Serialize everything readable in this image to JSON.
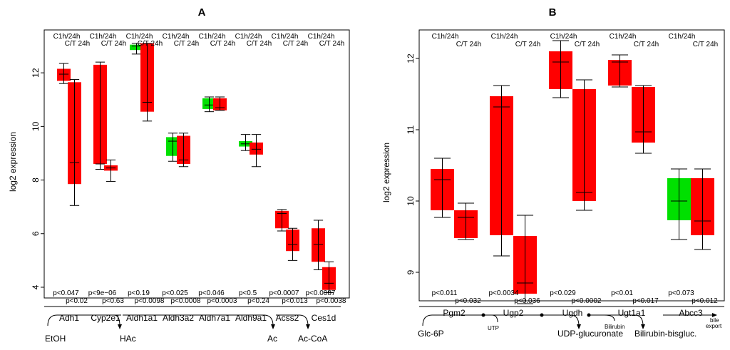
{
  "chart_data": [
    {
      "type": "box",
      "title": "A",
      "ylabel": "log2 expression",
      "ylim": [
        3.6,
        13.6
      ],
      "yticks": [
        4,
        6,
        8,
        10,
        12
      ],
      "colors": {
        "green": "#00e000",
        "red": "#ff0000"
      },
      "comparison_labels": {
        "first": "C1h/24h",
        "second": "C/T 24h"
      },
      "genes": [
        {
          "name": "Adh1",
          "box1": {
            "color": "red",
            "q1": 11.7,
            "q3": 12.15,
            "median": 11.95,
            "whisker_lo": 11.6,
            "whisker_hi": 12.35
          },
          "box2": {
            "color": "red",
            "q1": 7.85,
            "q3": 11.65,
            "median": 8.65,
            "whisker_lo": 7.05,
            "whisker_hi": 11.75
          },
          "p1": "p<0.047",
          "p2": "p<0.02"
        },
        {
          "name": "Cyp2e1",
          "box1": {
            "color": "red",
            "q1": 8.6,
            "q3": 12.3,
            "median": 8.6,
            "whisker_lo": 8.4,
            "whisker_hi": 12.4
          },
          "box2": {
            "color": "red",
            "q1": 8.35,
            "q3": 8.55,
            "median": 8.45,
            "whisker_lo": 7.95,
            "whisker_hi": 8.75
          },
          "p1": "p<9e−06",
          "p2": "p<0.63"
        },
        {
          "name": "Aldh1a1",
          "box1": {
            "color": "green",
            "q1": 12.85,
            "q3": 13.05,
            "median": 13.0,
            "whisker_lo": 12.7,
            "whisker_hi": 13.1
          },
          "box2": {
            "color": "red",
            "q1": 10.55,
            "q3": 13.1,
            "median": 10.9,
            "whisker_lo": 10.2,
            "whisker_hi": 13.1
          },
          "p1": "p<0.19",
          "p2": "p<0.0098"
        },
        {
          "name": "Aldh3a2",
          "box1": {
            "color": "green",
            "q1": 8.9,
            "q3": 9.6,
            "median": 9.45,
            "whisker_lo": 8.7,
            "whisker_hi": 9.75
          },
          "box2": {
            "color": "red",
            "q1": 8.6,
            "q3": 9.65,
            "median": 8.75,
            "whisker_lo": 8.5,
            "whisker_hi": 9.75
          },
          "p1": "p<0.025",
          "p2": "p<0.0008"
        },
        {
          "name": "Aldh7a1",
          "box1": {
            "color": "green",
            "q1": 10.65,
            "q3": 11.05,
            "median": 10.8,
            "whisker_lo": 10.55,
            "whisker_hi": 11.1
          },
          "box2": {
            "color": "red",
            "q1": 10.6,
            "q3": 11.05,
            "median": 10.7,
            "whisker_lo": 10.6,
            "whisker_hi": 11.1
          },
          "p1": "p<0.046",
          "p2": "p<0.0003"
        },
        {
          "name": "Aldh9a1",
          "box1": {
            "color": "green",
            "q1": 9.25,
            "q3": 9.45,
            "median": 9.35,
            "whisker_lo": 9.1,
            "whisker_hi": 9.7
          },
          "box2": {
            "color": "red",
            "q1": 8.95,
            "q3": 9.4,
            "median": 9.15,
            "whisker_lo": 8.5,
            "whisker_hi": 9.7
          },
          "p1": "p<0.5",
          "p2": "p<0.24"
        },
        {
          "name": "Acss2",
          "box1": {
            "color": "red",
            "q1": 6.2,
            "q3": 6.85,
            "median": 6.75,
            "whisker_lo": 6.1,
            "whisker_hi": 6.9
          },
          "box2": {
            "color": "red",
            "q1": 5.35,
            "q3": 6.15,
            "median": 5.6,
            "whisker_lo": 5.0,
            "whisker_hi": 6.2
          },
          "p1": "p<0.0007",
          "p2": "p<0.013"
        },
        {
          "name": "Ces1d",
          "box1": {
            "color": "red",
            "q1": 4.95,
            "q3": 6.2,
            "median": 5.6,
            "whisker_lo": 4.65,
            "whisker_hi": 6.5
          },
          "box2": {
            "color": "red",
            "q1": 3.9,
            "q3": 4.75,
            "median": 4.15,
            "whisker_lo": 3.8,
            "whisker_hi": 4.95
          },
          "p1": "p<0.0087",
          "p2": "p<0.0038"
        }
      ],
      "pathway": {
        "metabolites": [
          "EtOH",
          "HAc",
          "Ac",
          "Ac-CoA"
        ]
      }
    },
    {
      "type": "box",
      "title": "B",
      "ylabel": "log2 expression",
      "ylim": [
        8.6,
        12.4
      ],
      "yticks": [
        9,
        10,
        11,
        12
      ],
      "colors": {
        "green": "#00e000",
        "red": "#ff0000"
      },
      "comparison_labels": {
        "first": "C1h/24h",
        "second": "C/T 24h"
      },
      "genes": [
        {
          "name": "Pgm2",
          "box1": {
            "color": "red",
            "q1": 9.87,
            "q3": 10.45,
            "median": 10.3,
            "whisker_lo": 9.77,
            "whisker_hi": 10.6
          },
          "box2": {
            "color": "red",
            "q1": 9.48,
            "q3": 9.87,
            "median": 9.77,
            "whisker_lo": 9.46,
            "whisker_hi": 9.97
          },
          "p1": "p<0.011",
          "p2": "p<0.032"
        },
        {
          "name": "Ugp2",
          "box1": {
            "color": "red",
            "q1": 9.52,
            "q3": 11.47,
            "median": 11.32,
            "whisker_lo": 9.23,
            "whisker_hi": 11.62
          },
          "box2": {
            "color": "red",
            "q1": 8.7,
            "q3": 9.51,
            "median": 8.85,
            "whisker_lo": 8.56,
            "whisker_hi": 9.8
          },
          "p1": "p<0.0034",
          "p2": "p<0.036"
        },
        {
          "name": "Ugdh",
          "box1": {
            "color": "red",
            "q1": 11.57,
            "q3": 12.1,
            "median": 11.95,
            "whisker_lo": 11.45,
            "whisker_hi": 12.25
          },
          "box2": {
            "color": "red",
            "q1": 10.0,
            "q3": 11.57,
            "median": 10.12,
            "whisker_lo": 9.87,
            "whisker_hi": 11.7
          },
          "p1": "p<0.029",
          "p2": "p<0.0002"
        },
        {
          "name": "Ugt1a1",
          "box1": {
            "color": "red",
            "q1": 11.62,
            "q3": 11.98,
            "median": 11.95,
            "whisker_lo": 11.6,
            "whisker_hi": 12.05
          },
          "box2": {
            "color": "red",
            "q1": 10.82,
            "q3": 11.6,
            "median": 10.97,
            "whisker_lo": 10.67,
            "whisker_hi": 11.62
          },
          "p1": "p<0.01",
          "p2": "p<0.017"
        },
        {
          "name": "Abcc3",
          "box1": {
            "color": "green",
            "q1": 9.73,
            "q3": 10.32,
            "median": 10.0,
            "whisker_lo": 9.46,
            "whisker_hi": 10.45
          },
          "box2": {
            "color": "red",
            "q1": 9.52,
            "q3": 10.32,
            "median": 9.72,
            "whisker_lo": 9.32,
            "whisker_hi": 10.45
          },
          "p1": "p<0.073",
          "p2": "p<0.012"
        }
      ],
      "pathway": {
        "metabolites": [
          "Glc-6P",
          "UDP-glucuronate",
          "Bilirubin-bisgluc."
        ],
        "cofactors": [
          "UTP",
          "Bilirubin",
          "bile",
          "export"
        ]
      }
    }
  ]
}
